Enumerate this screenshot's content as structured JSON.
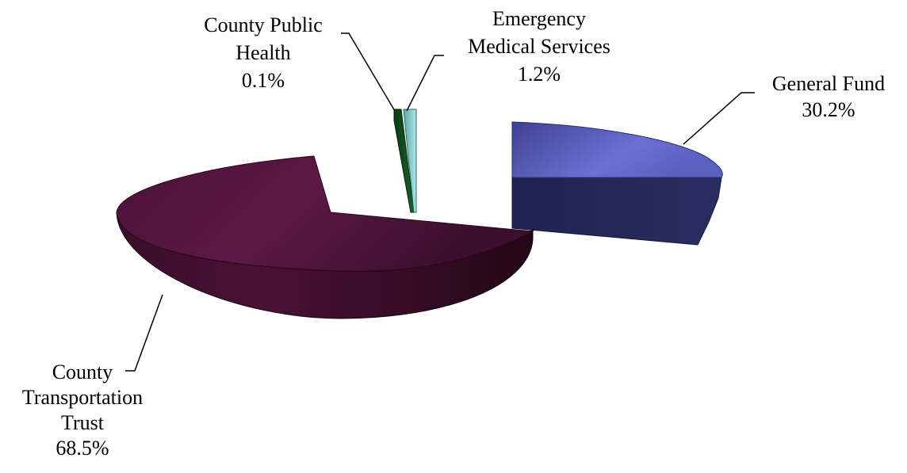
{
  "chart_data": {
    "type": "pie",
    "title": "",
    "style": "3d-exploded",
    "legend": "none",
    "slices": [
      {
        "label_lines": [
          "General Fund",
          "30.2%"
        ],
        "label": "General Fund",
        "value": 30.2,
        "color": "#5a5fb6"
      },
      {
        "label_lines": [
          "County",
          "Transportation",
          "Trust",
          "68.5%"
        ],
        "label": "County Transportation Trust",
        "value": 68.5,
        "color": "#55163f"
      },
      {
        "label_lines": [
          "County Public",
          "Health",
          "0.1%"
        ],
        "label": "County Public Health",
        "value": 0.1,
        "color": "#0e4a1c"
      },
      {
        "label_lines": [
          "Emergency",
          "Medical Services",
          "1.2%"
        ],
        "label": "Emergency Medical Services",
        "value": 1.2,
        "color": "#8fd3d3"
      }
    ]
  }
}
